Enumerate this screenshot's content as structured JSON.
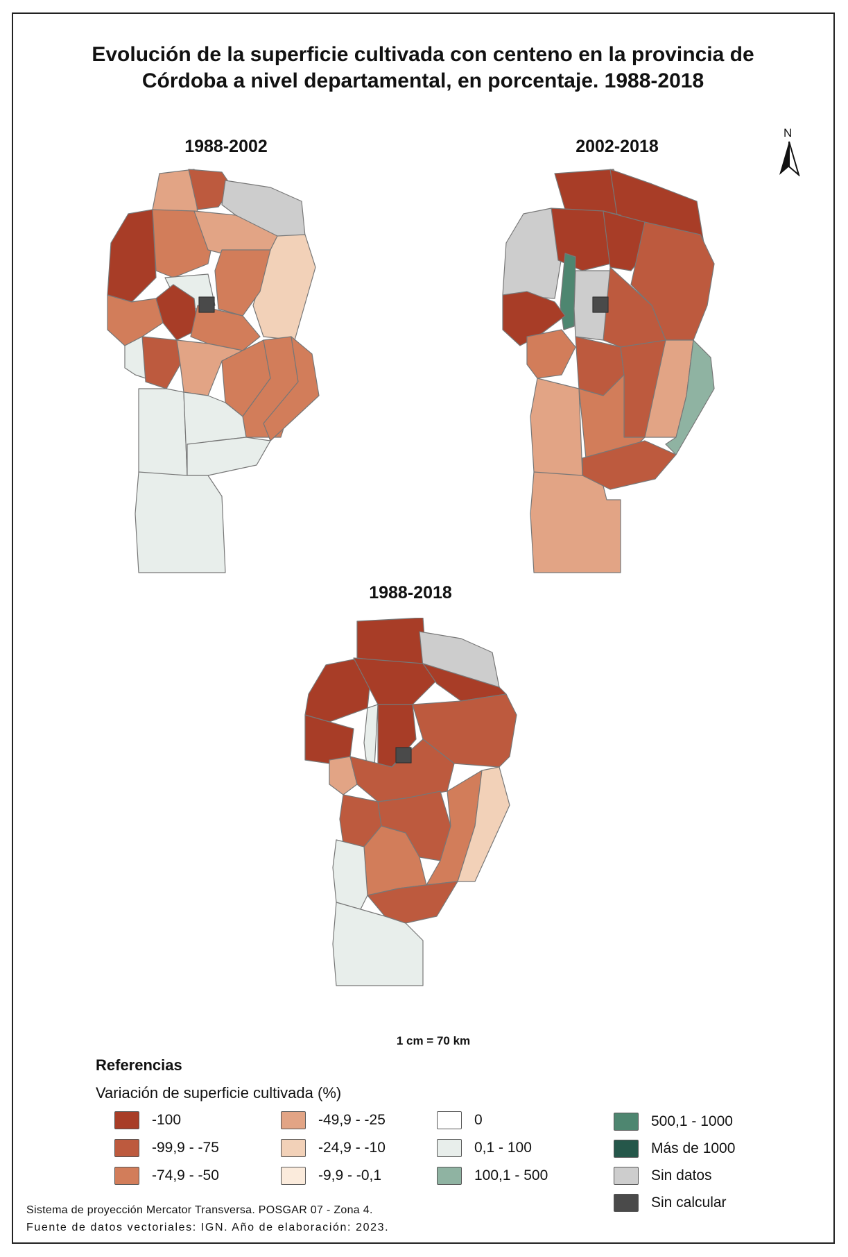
{
  "title": {
    "line1": "Evolución de la superficie cultivada con centeno en la provincia de",
    "line2": "Córdoba a nivel departamental, en porcentaje. 1988-2018"
  },
  "maps": [
    {
      "label": "1988-2002"
    },
    {
      "label": "2002-2018"
    },
    {
      "label": "1988-2018"
    }
  ],
  "north_label": "N",
  "scale_text": "1 cm = 70 km",
  "legend": {
    "heading": "Referencias",
    "subtitle": "Variación de superficie cultivada (%)",
    "items": [
      {
        "label": "-100",
        "color": "#a83d27"
      },
      {
        "label": "-99,9 - -75",
        "color": "#bd5a3e"
      },
      {
        "label": "-74,9 - -50",
        "color": "#d27d5a"
      },
      {
        "label": "-49,9 - -25",
        "color": "#e2a485"
      },
      {
        "label": "-24,9 - -10",
        "color": "#f2d1b8"
      },
      {
        "label": "-9,9 - -0,1",
        "color": "#fbebdc"
      },
      {
        "label": "0",
        "color": "#ffffff"
      },
      {
        "label": "0,1 - 100",
        "color": "#e8eeeb"
      },
      {
        "label": "100,1 - 500",
        "color": "#8fb3a2"
      },
      {
        "label": "500,1 - 1000",
        "color": "#4e8670"
      },
      {
        "label": "Más de 1000",
        "color": "#25574a"
      },
      {
        "label": "Sin datos",
        "color": "#cdcdcd"
      },
      {
        "label": "Sin calcular",
        "color": "#4a4a4a"
      }
    ]
  },
  "footer": {
    "line1": "Sistema de proyección Mercator Transversa. POSGAR 07 - Zona 4.",
    "line2": "Fuente de datos vectoriales: IGN. Año de elaboración: 2023."
  }
}
